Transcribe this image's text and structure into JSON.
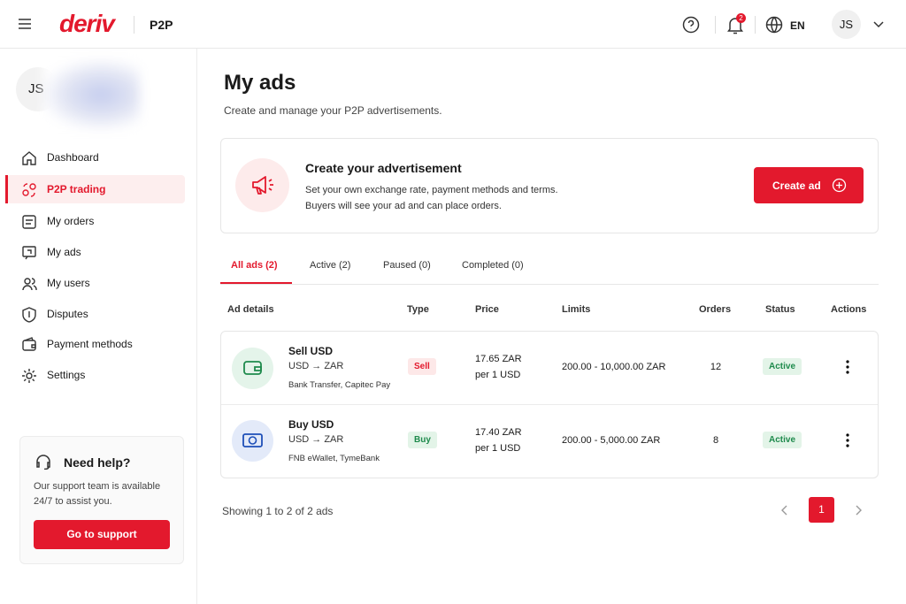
{
  "header": {
    "logo": "deriv",
    "product": "P2P",
    "notifications": 2,
    "language": "EN",
    "user_initials": "JS"
  },
  "sidebar": {
    "user_initials": "JS",
    "nav": [
      {
        "label": "Dashboard",
        "active": false
      },
      {
        "label": "P2P trading",
        "active": true
      },
      {
        "label": "My orders",
        "active": false
      },
      {
        "label": "My ads",
        "active": false
      },
      {
        "label": "My users",
        "active": false
      },
      {
        "label": "Disputes",
        "active": false
      },
      {
        "label": "Payment methods",
        "active": false
      },
      {
        "label": "Settings",
        "active": false
      }
    ],
    "help": {
      "title": "Need help?",
      "text": "Our support team is available 24/7 to assist you.",
      "button": "Go to support"
    }
  },
  "page": {
    "title": "My ads",
    "subtitle": "Create and manage your P2P advertisements."
  },
  "promo": {
    "title": "Create your advertisement",
    "lines": [
      "Set your own exchange rate, payment methods and terms.",
      "Buyers will see your ad and can place orders."
    ],
    "button": "Create ad"
  },
  "tabs": [
    {
      "label": "All ads (2)",
      "active": true
    },
    {
      "label": "Active (2)",
      "active": false
    },
    {
      "label": "Paused (0)",
      "active": false
    },
    {
      "label": "Completed (0)",
      "active": false
    }
  ],
  "table": {
    "columns": [
      "Ad details",
      "Type",
      "Price",
      "Limits",
      "Orders",
      "Status",
      "Actions"
    ],
    "rows": [
      {
        "title": "Sell USD",
        "pair": "USD → ZAR",
        "methods": "Bank Transfer, Capitec Pay",
        "type": "Sell",
        "price": "17.65 ZAR",
        "price_unit": "per 1 USD",
        "limits": "200.00 - 10,000.00 ZAR",
        "orders": 12,
        "status": "Active"
      },
      {
        "title": "Buy USD",
        "pair": "USD → ZAR",
        "methods": "FNB eWallet, TymeBank",
        "type": "Buy",
        "price": "17.40 ZAR",
        "price_unit": "per 1 USD",
        "limits": "200.00 - 5,000.00 ZAR",
        "orders": 8,
        "status": "Active"
      }
    ]
  },
  "footer": {
    "summary": "Showing 1 to 2 of 2 ads",
    "current_page": 1
  }
}
